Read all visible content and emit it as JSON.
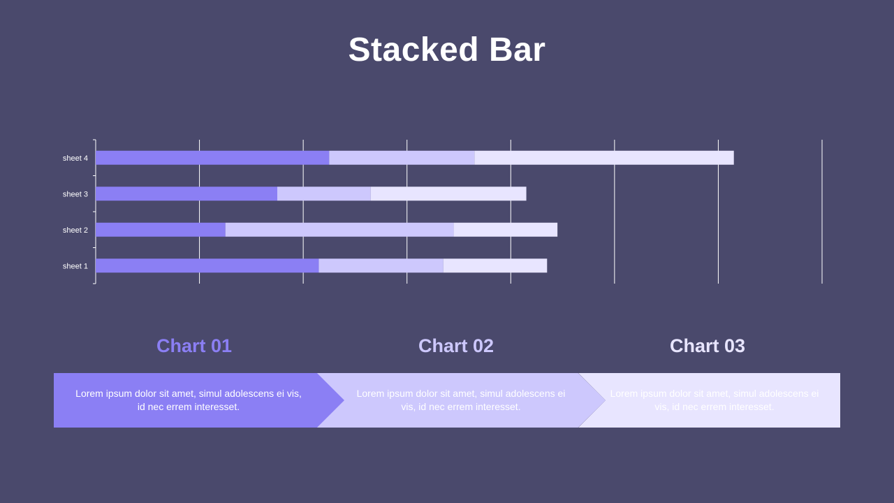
{
  "title": "Stacked Bar",
  "colors": {
    "background": "#4a496c",
    "series": [
      "#8b7ff4",
      "#cdc8fd",
      "#e8e5ff"
    ],
    "grid": "#ffffff",
    "axis_text": "#ffffff"
  },
  "chart_data": {
    "type": "bar",
    "orientation": "horizontal",
    "stacked": true,
    "title": "Stacked Bar",
    "categories": [
      "sheet 1",
      "sheet 2",
      "sheet 3",
      "sheet 4"
    ],
    "series": [
      {
        "values": [
          4.3,
          2.5,
          3.5,
          4.5
        ]
      },
      {
        "values": [
          2.4,
          4.4,
          1.8,
          2.8
        ]
      },
      {
        "values": [
          2.0,
          2.0,
          3.0,
          5.0
        ]
      }
    ],
    "xlim": [
      0,
      14
    ],
    "grid": true,
    "legend": false
  },
  "panels": [
    {
      "heading": "Chart 01",
      "text": "Lorem ipsum dolor sit amet, simul adolescens ei vis, id nec errem interesset.",
      "heading_color": "#8b7ff4",
      "fill": "#8b7ff4",
      "text_color": "#ffffff"
    },
    {
      "heading": "Chart 02",
      "text": "Lorem ipsum dolor sit amet, simul adolescens ei vis, id nec errem interesset.",
      "heading_color": "#cdc8fd",
      "fill": "#cdc8fd",
      "text_color": "#ffffff"
    },
    {
      "heading": "Chart 03",
      "text": "Lorem ipsum dolor sit amet, simul adolescens ei vis, id nec errem interesset.",
      "heading_color": "#e8e5ff",
      "fill": "#e8e5ff",
      "text_color": "#ffffff"
    }
  ]
}
